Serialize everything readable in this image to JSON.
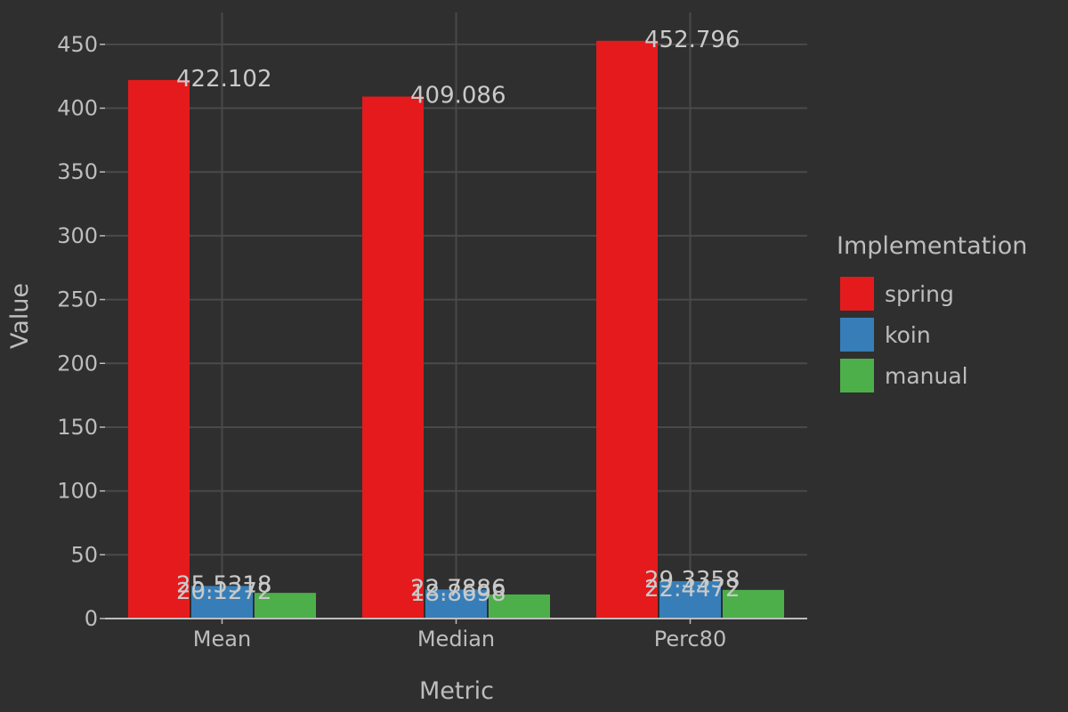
{
  "chart_data": {
    "type": "bar",
    "categories": [
      "Mean",
      "Median",
      "Perc80"
    ],
    "series": [
      {
        "name": "spring",
        "values": [
          422.102,
          409.086,
          452.796
        ],
        "labels": [
          "422.102",
          "409.086",
          "452.796"
        ],
        "color": "#e41a1c"
      },
      {
        "name": "koin",
        "values": [
          25.5318,
          22.7886,
          29.3358
        ],
        "labels": [
          "25.5318",
          "22.7886",
          "29.3358"
        ],
        "color": "#377eb8"
      },
      {
        "name": "manual",
        "values": [
          20.1272,
          18.8698,
          22.4472
        ],
        "labels": [
          "20.1272",
          "18.8698",
          "22.4472"
        ],
        "color": "#4daf4a"
      }
    ],
    "xlabel": "Metric",
    "ylabel": "Value",
    "ylim": [
      0,
      475
    ],
    "yticks": [
      "0",
      "50",
      "100",
      "150",
      "200",
      "250",
      "300",
      "350",
      "400",
      "450"
    ],
    "grid": true,
    "legend_title": "Implementation",
    "legend_position": "right"
  }
}
